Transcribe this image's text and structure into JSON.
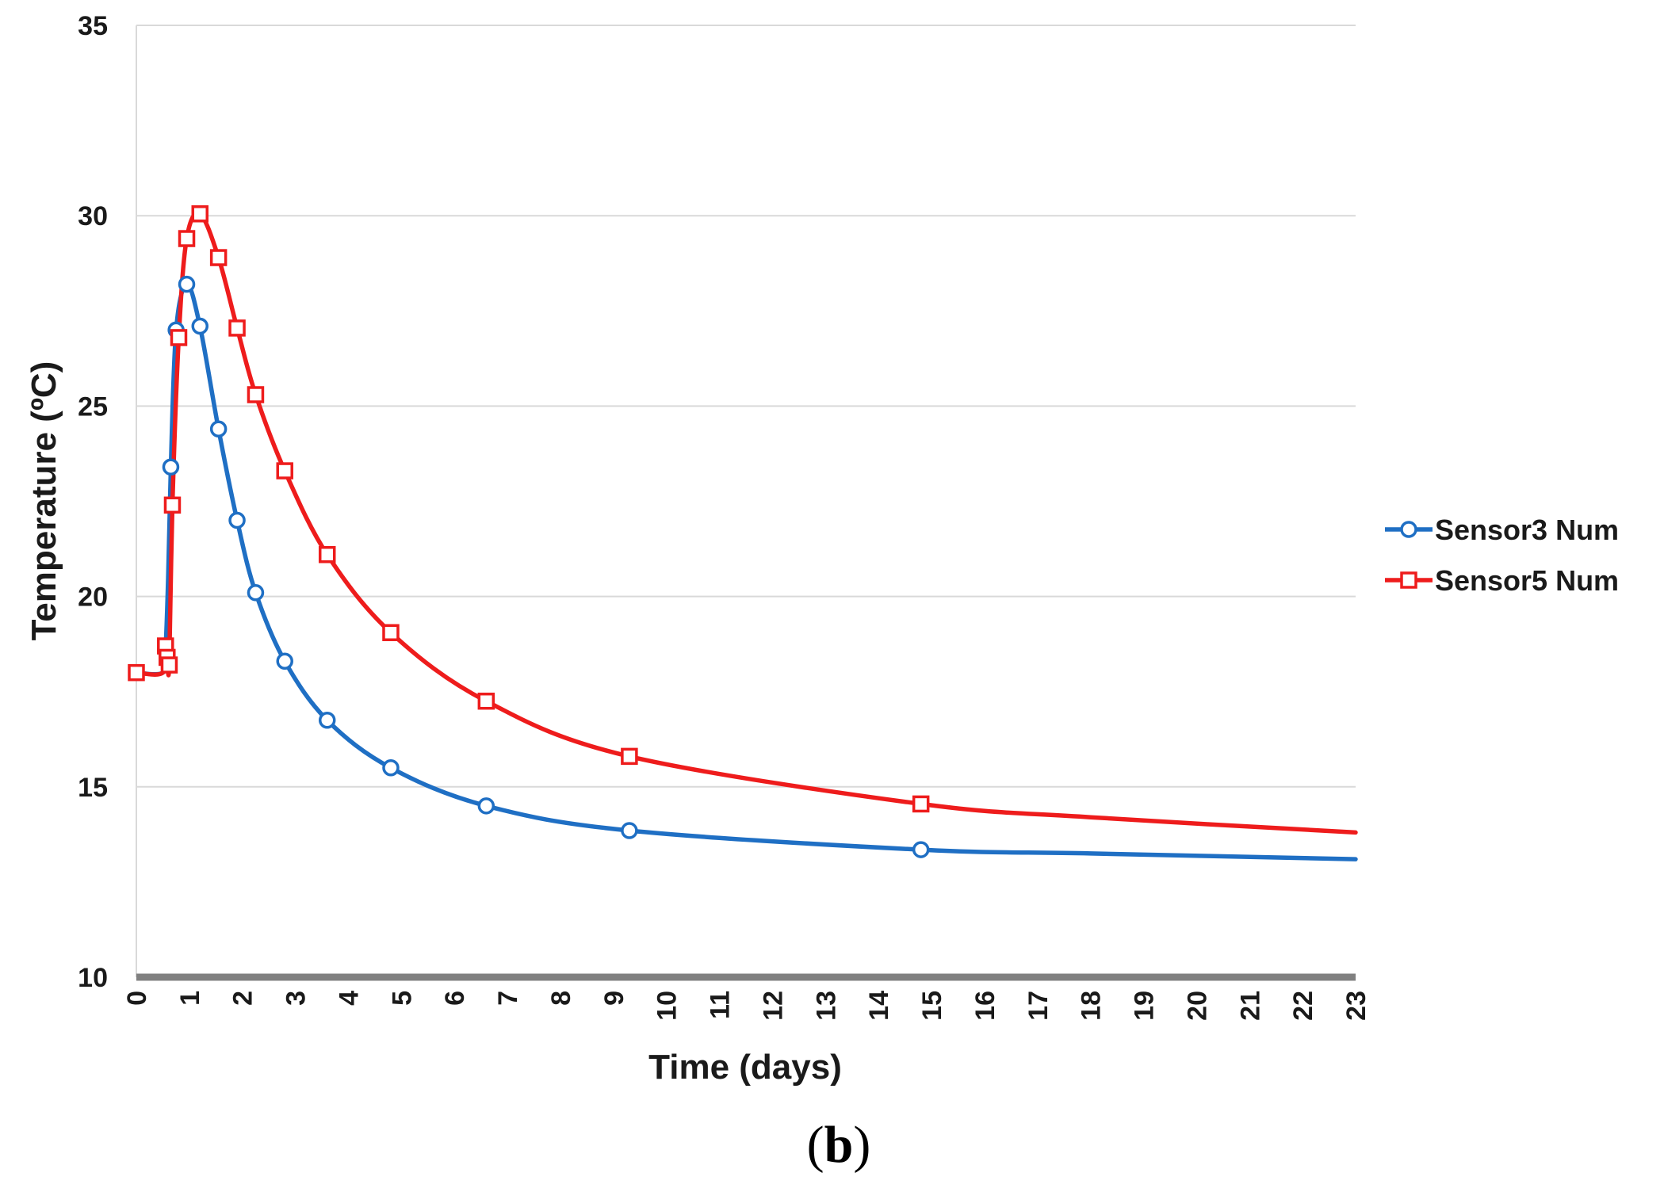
{
  "chart_data": {
    "type": "line",
    "title": "",
    "xlabel": "Time (days)",
    "ylabel": "Temperature (ºC)",
    "xlim": [
      0,
      23
    ],
    "ylim": [
      10,
      35
    ],
    "x_ticks": [
      "0",
      "1",
      "2",
      "3",
      "4",
      "5",
      "6",
      "7",
      "8",
      "9",
      "10",
      "11",
      "12",
      "13",
      "14",
      "15",
      "16",
      "17",
      "18",
      "19",
      "20",
      "21",
      "22",
      "23"
    ],
    "y_ticks": [
      "10",
      "15",
      "20",
      "25",
      "30",
      "35"
    ],
    "grid": "horizontal",
    "legend_position": "right",
    "panel_label": {
      "open": "(",
      "letter": "b",
      "close": ")"
    },
    "series": [
      {
        "name": "Sensor3 Num",
        "color": "#1f6fc4",
        "marker": "circle",
        "curve_x": [
          0,
          0.5,
          0.55,
          0.6,
          0.65,
          0.75,
          0.95,
          1.2,
          1.55,
          1.9,
          2.25,
          2.8,
          3.6,
          4.8,
          6.6,
          9.3,
          14.8,
          18,
          23
        ],
        "curve_y": [
          18.0,
          18.0,
          18.6,
          20.5,
          23.4,
          27.0,
          28.2,
          27.1,
          24.4,
          22.0,
          20.1,
          18.3,
          16.75,
          15.5,
          14.5,
          13.85,
          13.35,
          13.25,
          13.1
        ],
        "marker_x": [
          0.55,
          0.65,
          0.75,
          0.95,
          1.2,
          1.55,
          1.9,
          2.25,
          2.8,
          3.6,
          4.8,
          6.6,
          9.3,
          14.8
        ],
        "marker_y": [
          18.6,
          23.4,
          27.0,
          28.2,
          27.1,
          24.4,
          22.0,
          20.1,
          18.3,
          16.75,
          15.5,
          14.5,
          13.85,
          13.35
        ]
      },
      {
        "name": "Sensor5 Num",
        "color": "#ee1c1c",
        "marker": "square",
        "curve_x": [
          0,
          0.5,
          0.55,
          0.58,
          0.62,
          0.68,
          0.8,
          0.95,
          1.2,
          1.55,
          1.9,
          2.25,
          2.8,
          3.6,
          4.8,
          6.6,
          9.3,
          14.8,
          18,
          23
        ],
        "curve_y": [
          18.0,
          18.0,
          18.7,
          18.4,
          18.2,
          22.4,
          26.8,
          29.4,
          30.05,
          28.9,
          27.05,
          25.3,
          23.3,
          21.1,
          19.05,
          17.25,
          15.8,
          14.55,
          14.2,
          13.8
        ],
        "marker_x": [
          0,
          0.55,
          0.58,
          0.62,
          0.68,
          0.8,
          0.95,
          1.2,
          1.55,
          1.9,
          2.25,
          2.8,
          3.6,
          4.8,
          6.6,
          9.3,
          14.8
        ],
        "marker_y": [
          18.0,
          18.7,
          18.4,
          18.2,
          22.4,
          26.8,
          29.4,
          30.05,
          28.9,
          27.05,
          25.3,
          23.3,
          21.1,
          19.05,
          17.25,
          15.8,
          14.55
        ]
      }
    ]
  }
}
